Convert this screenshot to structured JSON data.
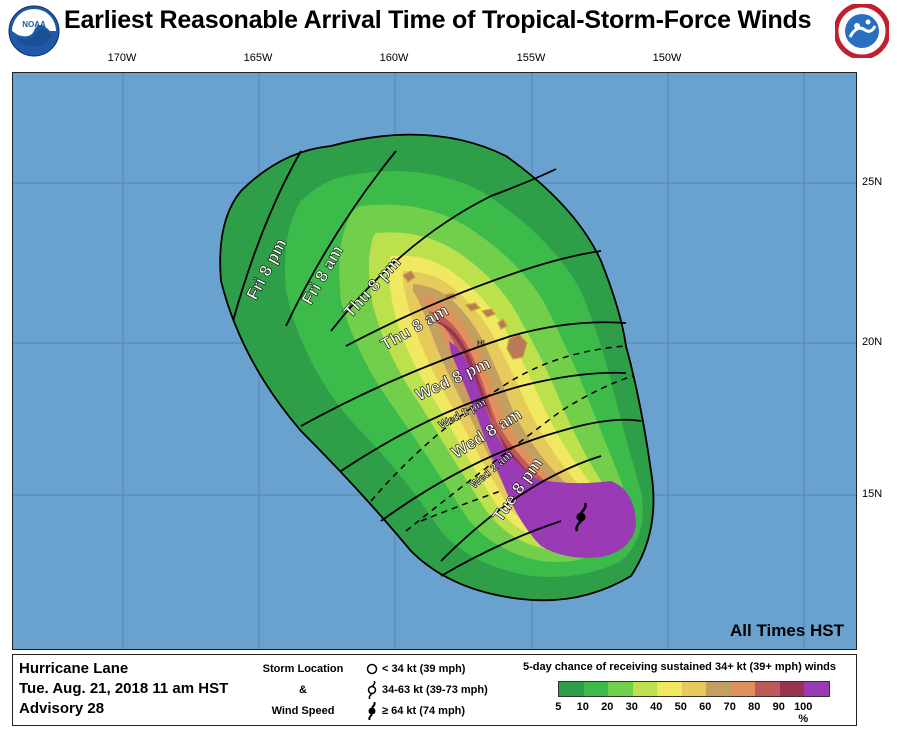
{
  "title": "Earliest Reasonable Arrival Time of Tropical-Storm-Force Winds",
  "logos": {
    "left": "noaa-logo",
    "right": "nws-logo"
  },
  "map": {
    "lon_labels": [
      "170W",
      "165W",
      "160W",
      "155W",
      "150W"
    ],
    "lat_labels": [
      "25N",
      "20N",
      "15N"
    ],
    "island_label": "HI",
    "times_note": "All Times HST",
    "contour_labels": [
      "Fri 8 pm",
      "Fri 8 am",
      "Thu 8 pm",
      "Thu 8 am",
      "Wed 8 pm",
      "Wed 2 pm",
      "Wed 8 am",
      "Wed 2 am",
      "Tue 8 pm"
    ],
    "colors": {
      "ocean": "#6aa2cf",
      "p5": "#2e9e48",
      "p10": "#3dbb4a",
      "p20": "#72cf4b",
      "p30": "#bde04d",
      "p40": "#f0e860",
      "p50": "#e6cb5c",
      "p60": "#c4a060",
      "p70": "#b97a5a",
      "p80": "#b0455a",
      "p90": "#8e2a4f",
      "p100": "#9b3ab5"
    }
  },
  "legend": {
    "storm_name": "Hurricane Lane",
    "datetime": "Tue. Aug. 21, 2018  11 am HST",
    "advisory": "Advisory 28",
    "storm_location_label": "Storm Location",
    "amp": "&",
    "wind_speed_label": "Wind Speed",
    "symbols": [
      {
        "icon": "open-circle",
        "text": "< 34 kt (39 mph)"
      },
      {
        "icon": "tropical-storm-symbol",
        "text": "34-63 kt (39-73 mph)"
      },
      {
        "icon": "hurricane-symbol",
        "text": "≥ 64 kt (74 mph)"
      }
    ],
    "prob_title": "5-day chance of receiving sustained 34+ kt (39+ mph) winds",
    "colorbar_colors": [
      "#2e9e48",
      "#3dbb4a",
      "#72cf4b",
      "#bde04d",
      "#f0e860",
      "#e6cb5c",
      "#c4a060",
      "#e0905a",
      "#c05a5a",
      "#9a3350",
      "#9b3ab5"
    ],
    "colorbar_ticks": [
      "5",
      "10",
      "20",
      "30",
      "40",
      "50",
      "60",
      "70",
      "80",
      "90",
      "100 %"
    ]
  }
}
